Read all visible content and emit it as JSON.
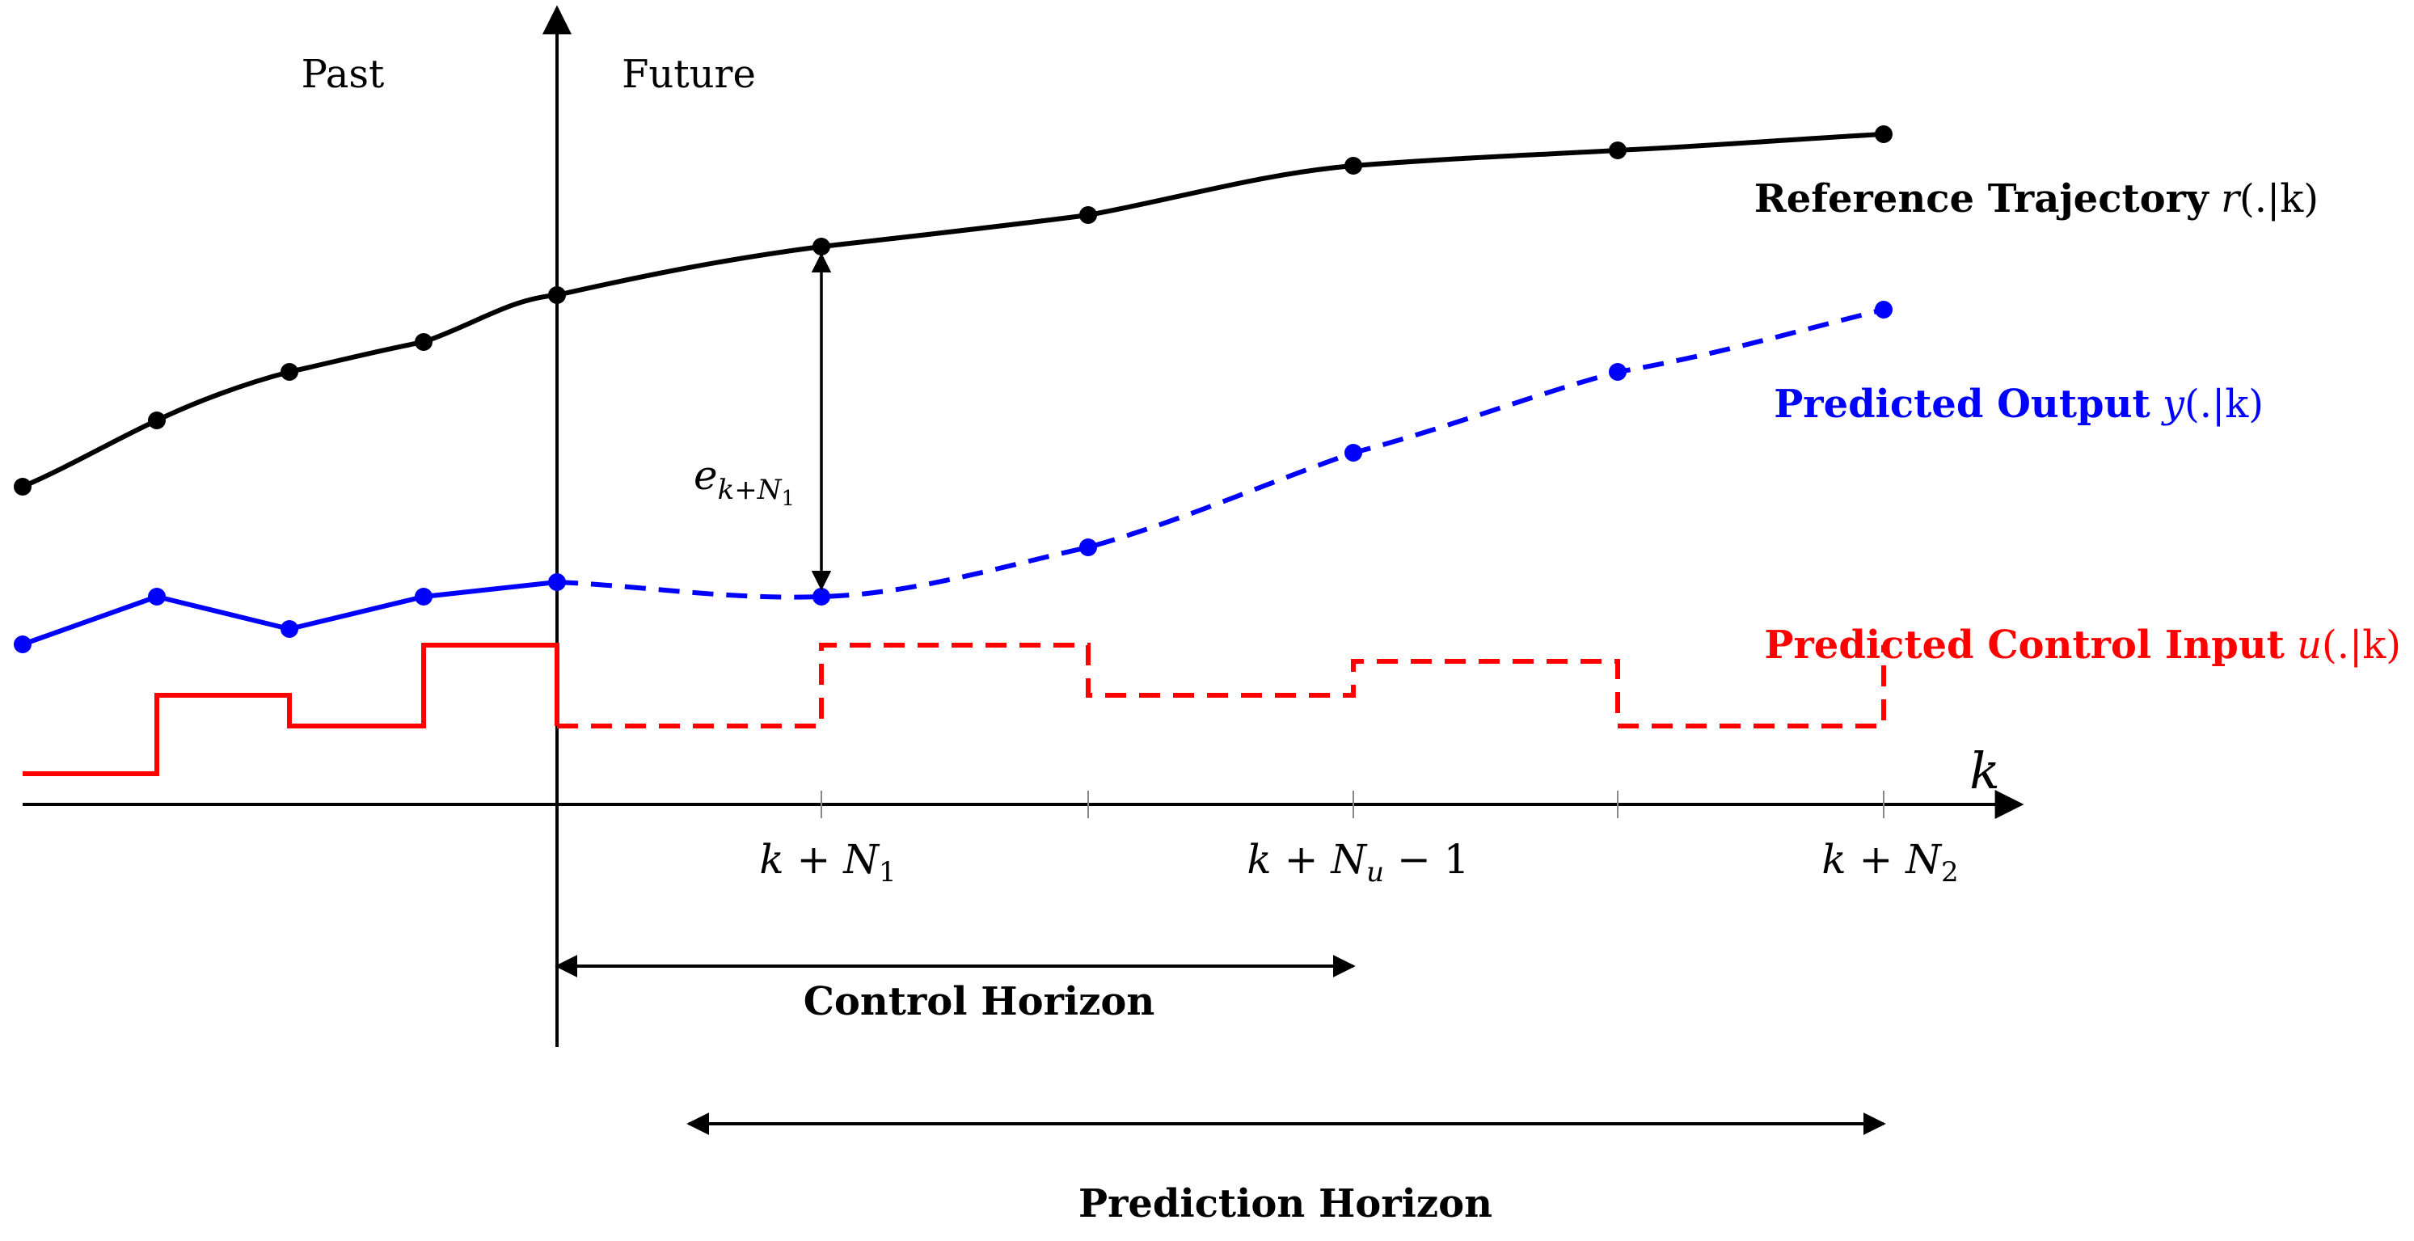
{
  "regions": {
    "past_label": "Past",
    "future_label": "Future"
  },
  "axis": {
    "x_label": "k",
    "ticks": [
      {
        "base": "k + N",
        "sub": "1",
        "suffix": ""
      },
      {
        "base": "k + N",
        "sub": "u",
        "suffix": " − 1"
      },
      {
        "base": "k + N",
        "sub": "2",
        "suffix": ""
      }
    ]
  },
  "series": {
    "reference": {
      "name": "Reference Trajectory",
      "symbol_var": "r",
      "symbol_args": "(.|k)",
      "color": "#000000"
    },
    "output": {
      "name": "Predicted Output",
      "symbol_var": "y",
      "symbol_args": "(.|k)",
      "color": "#0000ff"
    },
    "input": {
      "name": "Predicted Control Input",
      "symbol_var": "u",
      "symbol_args": "(.|k)",
      "color": "#ff0000"
    }
  },
  "error_annotation": {
    "base": "e",
    "sub": "k+N",
    "subsub": "1"
  },
  "horizons": {
    "control": "Control Horizon",
    "prediction": "Prediction Horizon"
  }
}
